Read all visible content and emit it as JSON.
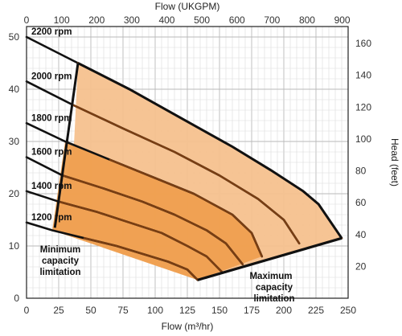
{
  "chart_data": {
    "type": "line",
    "x_axis": {
      "label": "Flow (m³/hr)",
      "range": [
        0,
        250
      ],
      "ticks": [
        0,
        25,
        50,
        75,
        100,
        125,
        150,
        175,
        200,
        225,
        250
      ]
    },
    "x_axis_top": {
      "label": "Flow (UKGPM)",
      "range": [
        0,
        917
      ],
      "ticks": [
        0,
        100,
        200,
        300,
        400,
        500,
        600,
        700,
        800,
        900
      ]
    },
    "y_axis_left": {
      "label": "",
      "range": [
        0,
        52
      ],
      "ticks": [
        0,
        10,
        20,
        30,
        40,
        50
      ]
    },
    "y_axis_right": {
      "label": "Head (feet)",
      "range": [
        0,
        170.6
      ],
      "ticks": [
        20,
        40,
        60,
        80,
        100,
        120,
        140,
        160
      ]
    },
    "grid": true,
    "series": [
      {
        "name": "2200 rpm",
        "x": [
          0,
          40,
          80,
          120,
          160,
          190,
          215,
          227,
          245
        ],
        "y": [
          50,
          45,
          40,
          34.5,
          29,
          24.5,
          20.5,
          18,
          11.5
        ]
      },
      {
        "name": "2000 rpm",
        "x": [
          0,
          36,
          75,
          115,
          150,
          180,
          200,
          212
        ],
        "y": [
          41.5,
          37,
          32.5,
          28,
          23.5,
          19,
          15,
          10.5
        ]
      },
      {
        "name": "1800 rpm",
        "x": [
          0,
          30,
          65,
          100,
          130,
          160,
          175,
          183
        ],
        "y": [
          33.5,
          30,
          26.5,
          23,
          20,
          16,
          12.5,
          8
        ]
      },
      {
        "name": "1600 rpm",
        "x": [
          0,
          28,
          60,
          90,
          115,
          140,
          155,
          168
        ],
        "y": [
          27,
          23.5,
          21,
          18.5,
          16,
          13,
          10.5,
          6.5
        ]
      },
      {
        "name": "1400 rpm",
        "x": [
          0,
          25,
          55,
          80,
          105,
          125,
          140,
          152
        ],
        "y": [
          20.5,
          18.5,
          16.5,
          14.5,
          12.5,
          10,
          8,
          5
        ]
      },
      {
        "name": "1200 rpm",
        "x": [
          0,
          20,
          45,
          70,
          90,
          110,
          125,
          133
        ],
        "y": [
          14.5,
          13,
          11.5,
          10,
          8.5,
          7,
          5.5,
          3.5
        ]
      }
    ],
    "regions": [
      {
        "color": "#f5c18e",
        "x": [
          37,
          40,
          80,
          120,
          160,
          190,
          215,
          227,
          245,
          133,
          22
        ],
        "y": [
          30,
          45,
          40,
          34.5,
          29,
          24.5,
          20.5,
          18,
          11.5,
          3.5,
          13
        ]
      },
      {
        "color": "#ef9f4f",
        "x": [
          30,
          65,
          100,
          130,
          160,
          175,
          183,
          133,
          20
        ],
        "y": [
          30,
          26.5,
          23,
          20,
          16,
          12.5,
          8,
          3.5,
          13
        ]
      }
    ],
    "boundaries": {
      "minimum_capacity": {
        "x": [
          22,
          40
        ],
        "y": [
          13.5,
          45
        ]
      },
      "maximum_capacity": {
        "x": [
          133,
          245
        ],
        "y": [
          3.5,
          11.5
        ]
      }
    },
    "annotations": [
      {
        "text_lines": [
          "Minimum",
          "capacity",
          "limitation"
        ]
      },
      {
        "text_lines": [
          "Maximum",
          "capacity",
          "limitation"
        ]
      }
    ]
  },
  "labels": {
    "x_title": "Flow (m³/hr)",
    "top_title": "Flow (UKGPM)",
    "right_title": "Head (feet)",
    "min_line1": "Minimum",
    "min_line2": "capacity",
    "min_line3": "limitation",
    "max_line1": "Maximum",
    "max_line2": "capacity",
    "max_line3": "limitation"
  }
}
